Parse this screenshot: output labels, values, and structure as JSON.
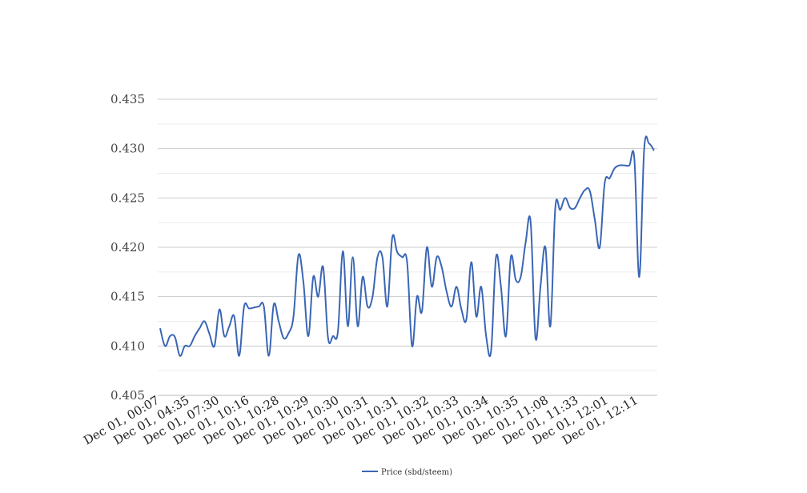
{
  "chart_data": {
    "type": "line",
    "title": "",
    "xlabel": "",
    "ylabel": "",
    "ylim": [
      0.405,
      0.435
    ],
    "yticks": [
      "0.405",
      "0.410",
      "0.415",
      "0.420",
      "0.425",
      "0.430",
      "0.435"
    ],
    "ytick_values": [
      0.405,
      0.41,
      0.415,
      0.42,
      0.425,
      0.43,
      0.435
    ],
    "minor_grid": true,
    "legend_position": "bottom-center",
    "xtick_labels": [
      "Dec 01, 00:07",
      "Dec 01, 04:35",
      "Dec 01, 07:30",
      "Dec 01, 10:16",
      "Dec 01, 10:28",
      "Dec 01, 10:29",
      "Dec 01, 10:30",
      "Dec 01, 10:31",
      "Dec 01, 10:31",
      "Dec 01, 10:32",
      "Dec 01, 10:33",
      "Dec 01, 10:34",
      "Dec 01, 10:35",
      "Dec 01, 11:08",
      "Dec 01, 11:33",
      "Dec 01, 12:01",
      "Dec 01, 12:11"
    ],
    "series": [
      {
        "name": "Price (sbd/steem)",
        "color": "#3a66b5",
        "values": [
          0.4118,
          0.41,
          0.411,
          0.4109,
          0.409,
          0.41,
          0.41,
          0.411,
          0.4118,
          0.4125,
          0.4112,
          0.41,
          0.4137,
          0.411,
          0.412,
          0.413,
          0.409,
          0.414,
          0.4138,
          0.4139,
          0.414,
          0.414,
          0.409,
          0.4142,
          0.4125,
          0.4108,
          0.4113,
          0.413,
          0.4192,
          0.4165,
          0.411,
          0.417,
          0.415,
          0.418,
          0.4108,
          0.411,
          0.4115,
          0.4196,
          0.412,
          0.419,
          0.412,
          0.417,
          0.414,
          0.415,
          0.419,
          0.419,
          0.414,
          0.421,
          0.4195,
          0.419,
          0.4185,
          0.41,
          0.415,
          0.4135,
          0.42,
          0.416,
          0.419,
          0.418,
          0.4155,
          0.414,
          0.416,
          0.4137,
          0.4127,
          0.4185,
          0.413,
          0.416,
          0.411,
          0.4095,
          0.419,
          0.416,
          0.411,
          0.419,
          0.4167,
          0.417,
          0.4205,
          0.4226,
          0.4108,
          0.416,
          0.42,
          0.412,
          0.424,
          0.4238,
          0.425,
          0.424,
          0.424,
          0.425,
          0.4258,
          0.4257,
          0.4228,
          0.42,
          0.4265,
          0.427,
          0.428,
          0.4283,
          0.4283,
          0.4283,
          0.429,
          0.417,
          0.43,
          0.4305,
          0.4298
        ]
      }
    ]
  }
}
